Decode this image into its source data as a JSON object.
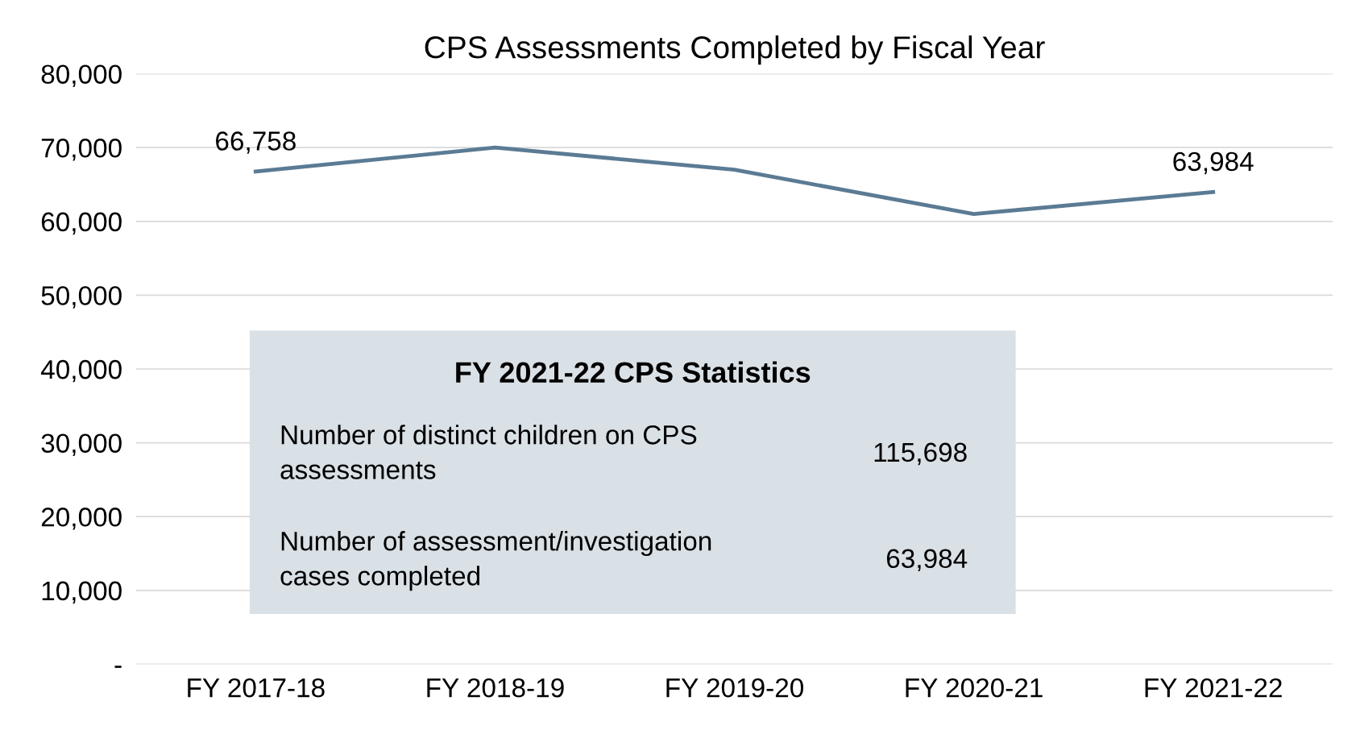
{
  "chart_data": {
    "type": "line",
    "title": "CPS Assessments Completed by Fiscal Year",
    "categories": [
      "FY 2017-18",
      "FY 2018-19",
      "FY 2019-20",
      "FY 2020-21",
      "FY 2021-22"
    ],
    "values": [
      66758,
      70000,
      67000,
      61000,
      63984
    ],
    "value_labels": [
      "66,758",
      null,
      null,
      null,
      "63,984"
    ],
    "color": "#5b7b94",
    "ylim": [
      0,
      80000
    ],
    "yticks": [
      {
        "value": 0,
        "label": "-"
      },
      {
        "value": 10000,
        "label": "10,000"
      },
      {
        "value": 20000,
        "label": "20,000"
      },
      {
        "value": 30000,
        "label": "30,000"
      },
      {
        "value": 40000,
        "label": "40,000"
      },
      {
        "value": 50000,
        "label": "50,000"
      },
      {
        "value": 60000,
        "label": "60,000"
      },
      {
        "value": 70000,
        "label": "70,000"
      },
      {
        "value": 80000,
        "label": "80,000"
      }
    ],
    "grid": "y",
    "marker": "none",
    "line_style": "solid",
    "legend": false,
    "annotations": [
      "FY 2021-22 CPS Statistics",
      "Number of distinct children on CPS\nassessments",
      "115,698",
      "Number of assessment/investigation\ncases completed",
      "63,984"
    ]
  }
}
